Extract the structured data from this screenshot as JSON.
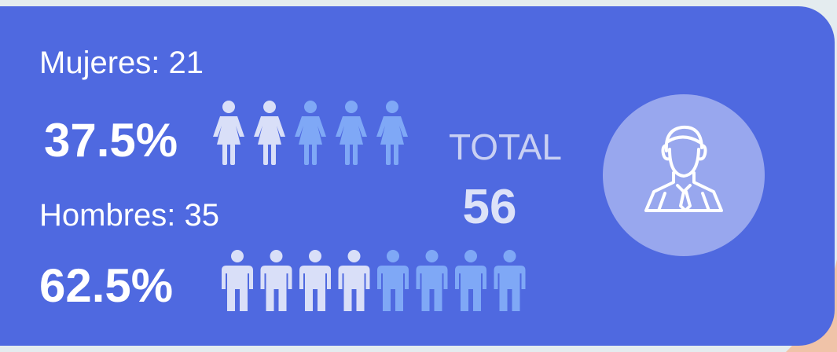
{
  "card": {
    "women": {
      "label": "Mujeres: 21",
      "percent": "37.5%"
    },
    "men": {
      "label": "Hombres: 35",
      "percent": "62.5%"
    },
    "total": {
      "label": "TOTAL",
      "value": "56"
    }
  }
}
